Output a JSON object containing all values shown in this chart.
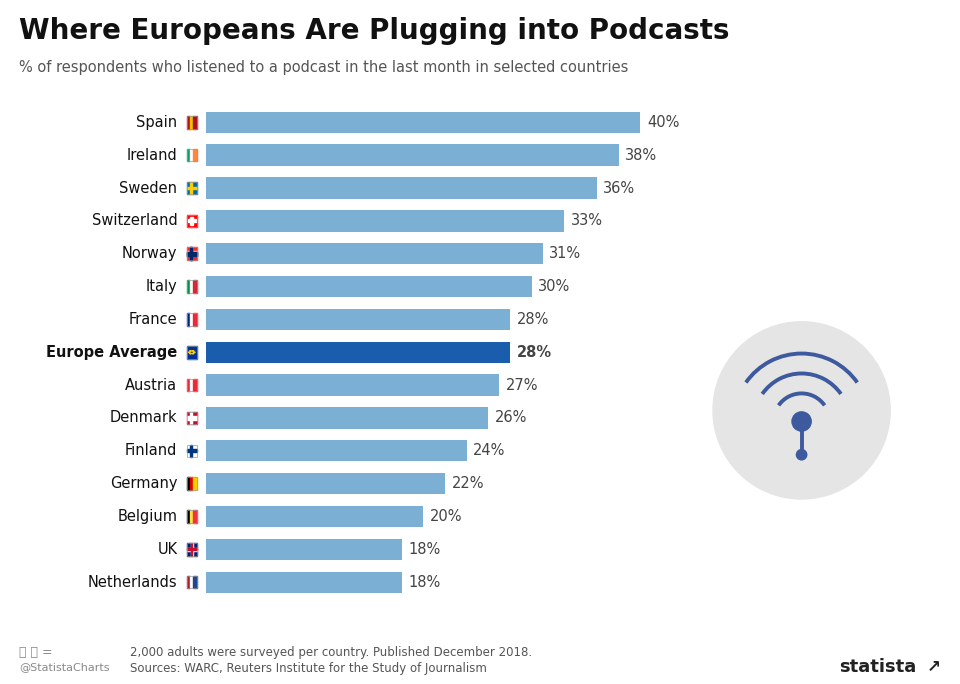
{
  "title": "Where Europeans Are Plugging into Podcasts",
  "subtitle": "% of respondents who listened to a podcast in the last month in selected countries",
  "categories": [
    "Spain",
    "Ireland",
    "Sweden",
    "Switzerland",
    "Norway",
    "Italy",
    "France",
    "Europe Average",
    "Austria",
    "Denmark",
    "Finland",
    "Germany",
    "Belgium",
    "UK",
    "Netherlands"
  ],
  "values": [
    40,
    38,
    36,
    33,
    31,
    30,
    28,
    28,
    27,
    26,
    24,
    22,
    20,
    18,
    18
  ],
  "bar_color_normal": "#7BAFD4",
  "bar_color_highlight": "#1A5DAD",
  "highlight_index": 7,
  "value_label_color": "#444444",
  "background_color": "#FFFFFF",
  "footer_text1": "2,000 adults were surveyed per country. Published December 2018.",
  "footer_text2": "Sources: WARC, Reuters Institute for the Study of Journalism",
  "footer_credit": "@StatistaCharts",
  "xlim": [
    0,
    50
  ],
  "bar_height": 0.65,
  "title_fontsize": 20,
  "subtitle_fontsize": 10.5,
  "label_fontsize": 10.5,
  "value_fontsize": 10.5,
  "icon_color": "#3D5A9E",
  "icon_bg_color": "#E5E5E5",
  "flag_colors": {
    "Spain": [
      [
        "#AA151B",
        0.33
      ],
      [
        "#F1BF00",
        0.34
      ],
      [
        "#AA151B",
        0.33
      ]
    ],
    "Ireland": [
      [
        "#169B62",
        0.33
      ],
      [
        "#FFFFFF",
        0.34
      ],
      [
        "#FF883E",
        0.33
      ]
    ],
    "Sweden": [
      [
        "#006AA7",
        1.0
      ]
    ],
    "Switzerland": [
      [
        "#FF0000",
        1.0
      ]
    ],
    "Norway": [
      [
        "#EF2B2D",
        1.0
      ]
    ],
    "Italy": [
      [
        "#009246",
        0.33
      ],
      [
        "#FFFFFF",
        0.34
      ],
      [
        "#CE2B37",
        0.33
      ]
    ],
    "France": [
      [
        "#002395",
        0.33
      ],
      [
        "#FFFFFF",
        0.34
      ],
      [
        "#ED2939",
        0.33
      ]
    ],
    "Europe Average": [
      [
        "#003399",
        1.0
      ]
    ],
    "Austria": [
      [
        "#ED2939",
        0.33
      ],
      [
        "#FFFFFF",
        0.34
      ],
      [
        "#ED2939",
        0.33
      ]
    ],
    "Denmark": [
      [
        "#C60C30",
        1.0
      ]
    ],
    "Finland": [
      [
        "#FFFFFF",
        1.0
      ]
    ],
    "Germany": [
      [
        "#000000",
        0.33
      ],
      [
        "#DD0000",
        0.34
      ],
      [
        "#FFCE00",
        0.33
      ]
    ],
    "Belgium": [
      [
        "#000000",
        0.33
      ],
      [
        "#FAE042",
        0.34
      ],
      [
        "#EF3340",
        0.33
      ]
    ],
    "UK": [
      [
        "#012169",
        1.0
      ]
    ],
    "Netherlands": [
      [
        "#AE1C28",
        0.33
      ],
      [
        "#FFFFFF",
        0.34
      ],
      [
        "#21468B",
        0.33
      ]
    ]
  }
}
